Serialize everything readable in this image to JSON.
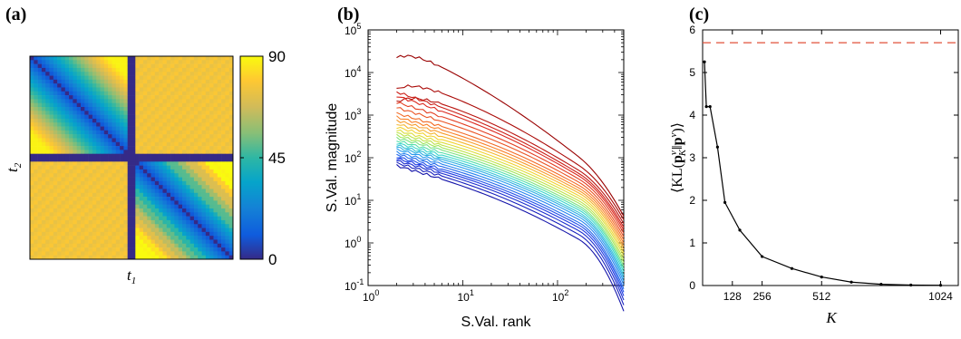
{
  "panels": {
    "a": "(a)",
    "b": "(b)",
    "c": "(c)"
  },
  "colors": {
    "blue": "#2b2ba8",
    "red": "#e0503a",
    "yellow": "#f9e230",
    "navy": "#3b2a9a"
  },
  "chart_data": [
    {
      "type": "heatmap",
      "panel": "a",
      "xlabel_main": "t",
      "xlabel_sub": "1",
      "ylabel_main": "t",
      "ylabel_sub": "2",
      "colorbar": {
        "min": 0,
        "max": 90,
        "ticks": [
          "90",
          "45",
          "0"
        ]
      },
      "blocks": 2,
      "grid_cells": 52
    },
    {
      "type": "line",
      "panel": "b",
      "xscale": "log",
      "yscale": "log",
      "xlim": [
        1,
        500
      ],
      "ylim": [
        0.1,
        100000
      ],
      "xlabel": "S.Val. rank",
      "ylabel": "S.Val. magnitude",
      "xticks": [
        {
          "base": "10",
          "exp": "0"
        },
        {
          "base": "10",
          "exp": "1"
        },
        {
          "base": "10",
          "exp": "2"
        }
      ],
      "yticks": [
        {
          "base": "10",
          "exp": "-1"
        },
        {
          "base": "10",
          "exp": "0"
        },
        {
          "base": "10",
          "exp": "1"
        },
        {
          "base": "10",
          "exp": "2"
        },
        {
          "base": "10",
          "exp": "3"
        },
        {
          "base": "10",
          "exp": "4"
        },
        {
          "base": "10",
          "exp": "5"
        }
      ],
      "series_start": [
        50000,
        9000,
        4500,
        3500,
        2800,
        2000,
        1500,
        1100,
        900,
        750,
        620,
        520,
        440,
        380,
        330,
        290,
        250,
        220,
        195,
        175,
        155,
        135,
        120,
        105,
        95,
        85,
        75,
        65
      ],
      "series_end": [
        15,
        13,
        11,
        9.5,
        8.5,
        7.5,
        6.5,
        5.7,
        5,
        4.4,
        3.9,
        3.4,
        3.0,
        2.6,
        2.3,
        2.0,
        1.8,
        1.6,
        1.4,
        1.25,
        1.1,
        0.95,
        0.8,
        0.7,
        0.6,
        0.5,
        0.4,
        0.3
      ]
    },
    {
      "type": "line",
      "panel": "c",
      "xlim": [
        0,
        1100
      ],
      "ylim": [
        0,
        6
      ],
      "xlabel": "K",
      "ylabel": "⟨KL(p_K^ν ‖ p^ν)⟩",
      "xticks": [
        128,
        256,
        512,
        1024
      ],
      "yticks": [
        0,
        1,
        2,
        3,
        4,
        5,
        6
      ],
      "reference_line": 5.7,
      "x": [
        8,
        16,
        32,
        64,
        96,
        160,
        256,
        384,
        512,
        640,
        768,
        896,
        1024
      ],
      "y": [
        5.25,
        4.2,
        4.2,
        3.25,
        1.95,
        1.3,
        0.68,
        0.4,
        0.2,
        0.08,
        0.03,
        0.01,
        0.005
      ]
    }
  ]
}
